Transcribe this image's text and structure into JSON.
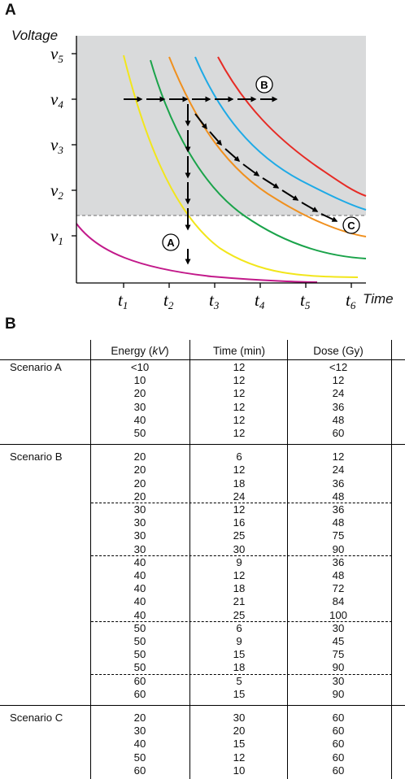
{
  "panel_a": {
    "label": "A",
    "y_axis_title": "Voltage",
    "x_axis_title": "Time",
    "y_ticks": [
      {
        "base": "v",
        "sub": "5"
      },
      {
        "base": "v",
        "sub": "4"
      },
      {
        "base": "v",
        "sub": "3"
      },
      {
        "base": "v",
        "sub": "2"
      },
      {
        "base": "v",
        "sub": "1"
      }
    ],
    "x_ticks": [
      {
        "base": "t",
        "sub": "1"
      },
      {
        "base": "t",
        "sub": "2"
      },
      {
        "base": "t",
        "sub": "3"
      },
      {
        "base": "t",
        "sub": "4"
      },
      {
        "base": "t",
        "sub": "5"
      },
      {
        "base": "t",
        "sub": "6"
      }
    ],
    "markers": {
      "a": "A",
      "b": "B",
      "c": "C"
    },
    "colors": {
      "shaded_region": "#d9dadb",
      "threshold": "#888888",
      "curves": [
        "#c2198a",
        "#f2e61b",
        "#1aa34a",
        "#f0901e",
        "#1eaae6",
        "#e62b25"
      ]
    }
  },
  "chart_data": {
    "type": "line",
    "title": "",
    "xlabel": "Time",
    "ylabel": "Voltage",
    "x_categories": [
      "t1",
      "t2",
      "t3",
      "t4",
      "t5",
      "t6"
    ],
    "y_categories": [
      "v1",
      "v2",
      "v3",
      "v4",
      "v5"
    ],
    "shaded_region": "above v1-v2 threshold",
    "series": [
      {
        "color": "#c2198a",
        "values": [
          [
            0,
            1.3
          ],
          [
            0.5,
            0.55
          ],
          [
            1,
            0.35
          ],
          [
            2,
            0.12
          ],
          [
            3,
            0.05
          ],
          [
            5,
            0.02
          ]
        ]
      },
      {
        "color": "#f2e61b",
        "values": [
          [
            1.1,
            5
          ],
          [
            1.4,
            4
          ],
          [
            2,
            2.7
          ],
          [
            3,
            1.2
          ],
          [
            4,
            0.4
          ],
          [
            5,
            0.1
          ],
          [
            6,
            0.1
          ]
        ]
      },
      {
        "color": "#1aa34a",
        "values": [
          [
            1.6,
            4.9
          ],
          [
            2,
            4.0
          ],
          [
            3,
            2.6
          ],
          [
            4,
            1.2
          ],
          [
            5,
            0.6
          ],
          [
            6,
            0.45
          ]
        ]
      },
      {
        "color": "#f0901e",
        "values": [
          [
            2,
            4.9
          ],
          [
            2.6,
            3.8
          ],
          [
            3,
            3.2
          ],
          [
            4,
            2.1
          ],
          [
            5,
            1.2
          ],
          [
            6,
            0.9
          ]
        ]
      },
      {
        "color": "#1eaae6",
        "values": [
          [
            2.6,
            4.9
          ],
          [
            3,
            4.0
          ],
          [
            4,
            2.8
          ],
          [
            5,
            1.9
          ],
          [
            6,
            1.4
          ]
        ]
      },
      {
        "color": "#e62b25",
        "values": [
          [
            3.1,
            4.9
          ],
          [
            4,
            3.8
          ],
          [
            5,
            2.5
          ],
          [
            6,
            1.8
          ]
        ]
      }
    ]
  },
  "panel_b": {
    "label": "B",
    "headers": {
      "energy_prefix": "Energy (",
      "energy_unit": "kV",
      "energy_suffix": ")",
      "time": "Time (min)",
      "dose": "Dose (Gy)"
    },
    "scenarios": [
      {
        "name": "Scenario A",
        "groups": [
          [
            [
              "<10",
              "12",
              "<12"
            ],
            [
              "10",
              "12",
              "12"
            ],
            [
              "20",
              "12",
              "24"
            ],
            [
              "30",
              "12",
              "36"
            ],
            [
              "40",
              "12",
              "48"
            ],
            [
              "50",
              "12",
              "60"
            ]
          ]
        ]
      },
      {
        "name": "Scenario B",
        "groups": [
          [
            [
              "20",
              "6",
              "12"
            ],
            [
              "20",
              "12",
              "24"
            ],
            [
              "20",
              "18",
              "36"
            ],
            [
              "20",
              "24",
              "48"
            ]
          ],
          [
            [
              "30",
              "12",
              "36"
            ],
            [
              "30",
              "16",
              "48"
            ],
            [
              "30",
              "25",
              "75"
            ],
            [
              "30",
              "30",
              "90"
            ]
          ],
          [
            [
              "40",
              "9",
              "36"
            ],
            [
              "40",
              "12",
              "48"
            ],
            [
              "40",
              "18",
              "72"
            ],
            [
              "40",
              "21",
              "84"
            ],
            [
              "40",
              "25",
              "100"
            ]
          ],
          [
            [
              "50",
              "6",
              "30"
            ],
            [
              "50",
              "9",
              "45"
            ],
            [
              "50",
              "15",
              "75"
            ],
            [
              "50",
              "18",
              "90"
            ]
          ],
          [
            [
              "60",
              "5",
              "30"
            ],
            [
              "60",
              "15",
              "90"
            ]
          ]
        ]
      },
      {
        "name": "Scenario C",
        "groups": [
          [
            [
              "20",
              "30",
              "60"
            ],
            [
              "30",
              "20",
              "60"
            ],
            [
              "40",
              "15",
              "60"
            ],
            [
              "50",
              "12",
              "60"
            ],
            [
              "60",
              "10",
              "60"
            ]
          ]
        ]
      }
    ]
  }
}
